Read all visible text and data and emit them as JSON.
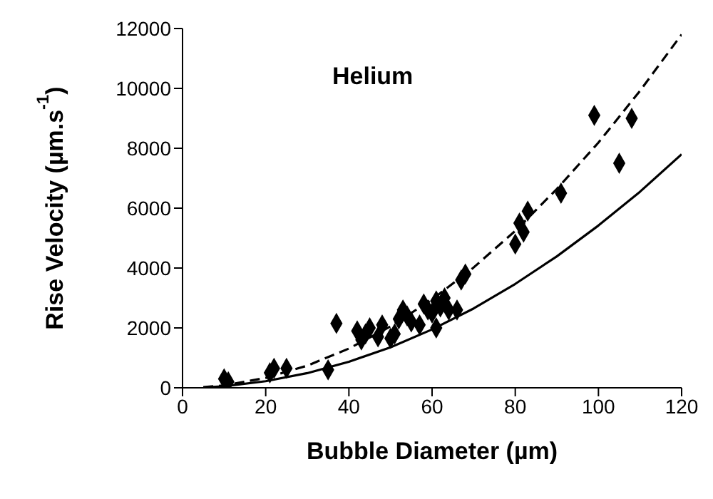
{
  "chart_data": {
    "type": "scatter",
    "xlabel": "Bubble Diameter (µm)",
    "ylabel": "Rise Velocity (µm.s$^{-1}$)",
    "annotations": [
      "Helium"
    ],
    "xlim": [
      0,
      120
    ],
    "xticks": [
      0,
      20,
      40,
      60,
      80,
      100,
      120
    ],
    "ylim": [
      0,
      12000
    ],
    "yticks": [
      0,
      2000,
      4000,
      6000,
      8000,
      10000,
      12000
    ],
    "grid": false,
    "marker": "diamond",
    "series": [
      {
        "color": "#000000",
        "x": [
          10,
          11,
          21,
          22,
          25,
          35,
          37,
          42,
          43,
          44,
          45,
          47,
          48,
          50,
          51,
          52,
          53,
          54,
          55,
          57,
          58,
          59,
          60,
          61,
          61,
          62,
          63,
          64,
          66,
          67,
          68,
          80,
          81,
          82,
          83,
          91,
          99,
          105,
          108
        ],
        "values": [
          300,
          200,
          500,
          650,
          650,
          600,
          2150,
          1900,
          1600,
          1800,
          2000,
          1700,
          2100,
          1650,
          1800,
          2300,
          2600,
          2400,
          2200,
          2100,
          2800,
          2600,
          2500,
          2900,
          2000,
          2700,
          3000,
          2600,
          2600,
          3600,
          3800,
          4800,
          5500,
          5200,
          5900,
          6500,
          9100,
          7500,
          9000
        ]
      },
      {
        "type": "line",
        "color": "#000000",
        "marker": "none",
        "line_style": "dashed",
        "x": [
          5,
          10,
          20,
          30,
          40,
          50,
          60,
          70,
          80,
          90,
          100,
          110,
          120
        ],
        "values": [
          20,
          80,
          330,
          740,
          1310,
          2050,
          2950,
          4020,
          5240,
          6640,
          8190,
          9920,
          11800
        ]
      },
      {
        "type": "line",
        "color": "#000000",
        "marker": "none",
        "line_style": "solid",
        "x": [
          5,
          10,
          20,
          30,
          40,
          50,
          60,
          70,
          80,
          90,
          100,
          110,
          120
        ],
        "values": [
          10,
          50,
          220,
          490,
          870,
          1350,
          1950,
          2650,
          3470,
          4390,
          5420,
          6550,
          7800
        ]
      }
    ]
  }
}
